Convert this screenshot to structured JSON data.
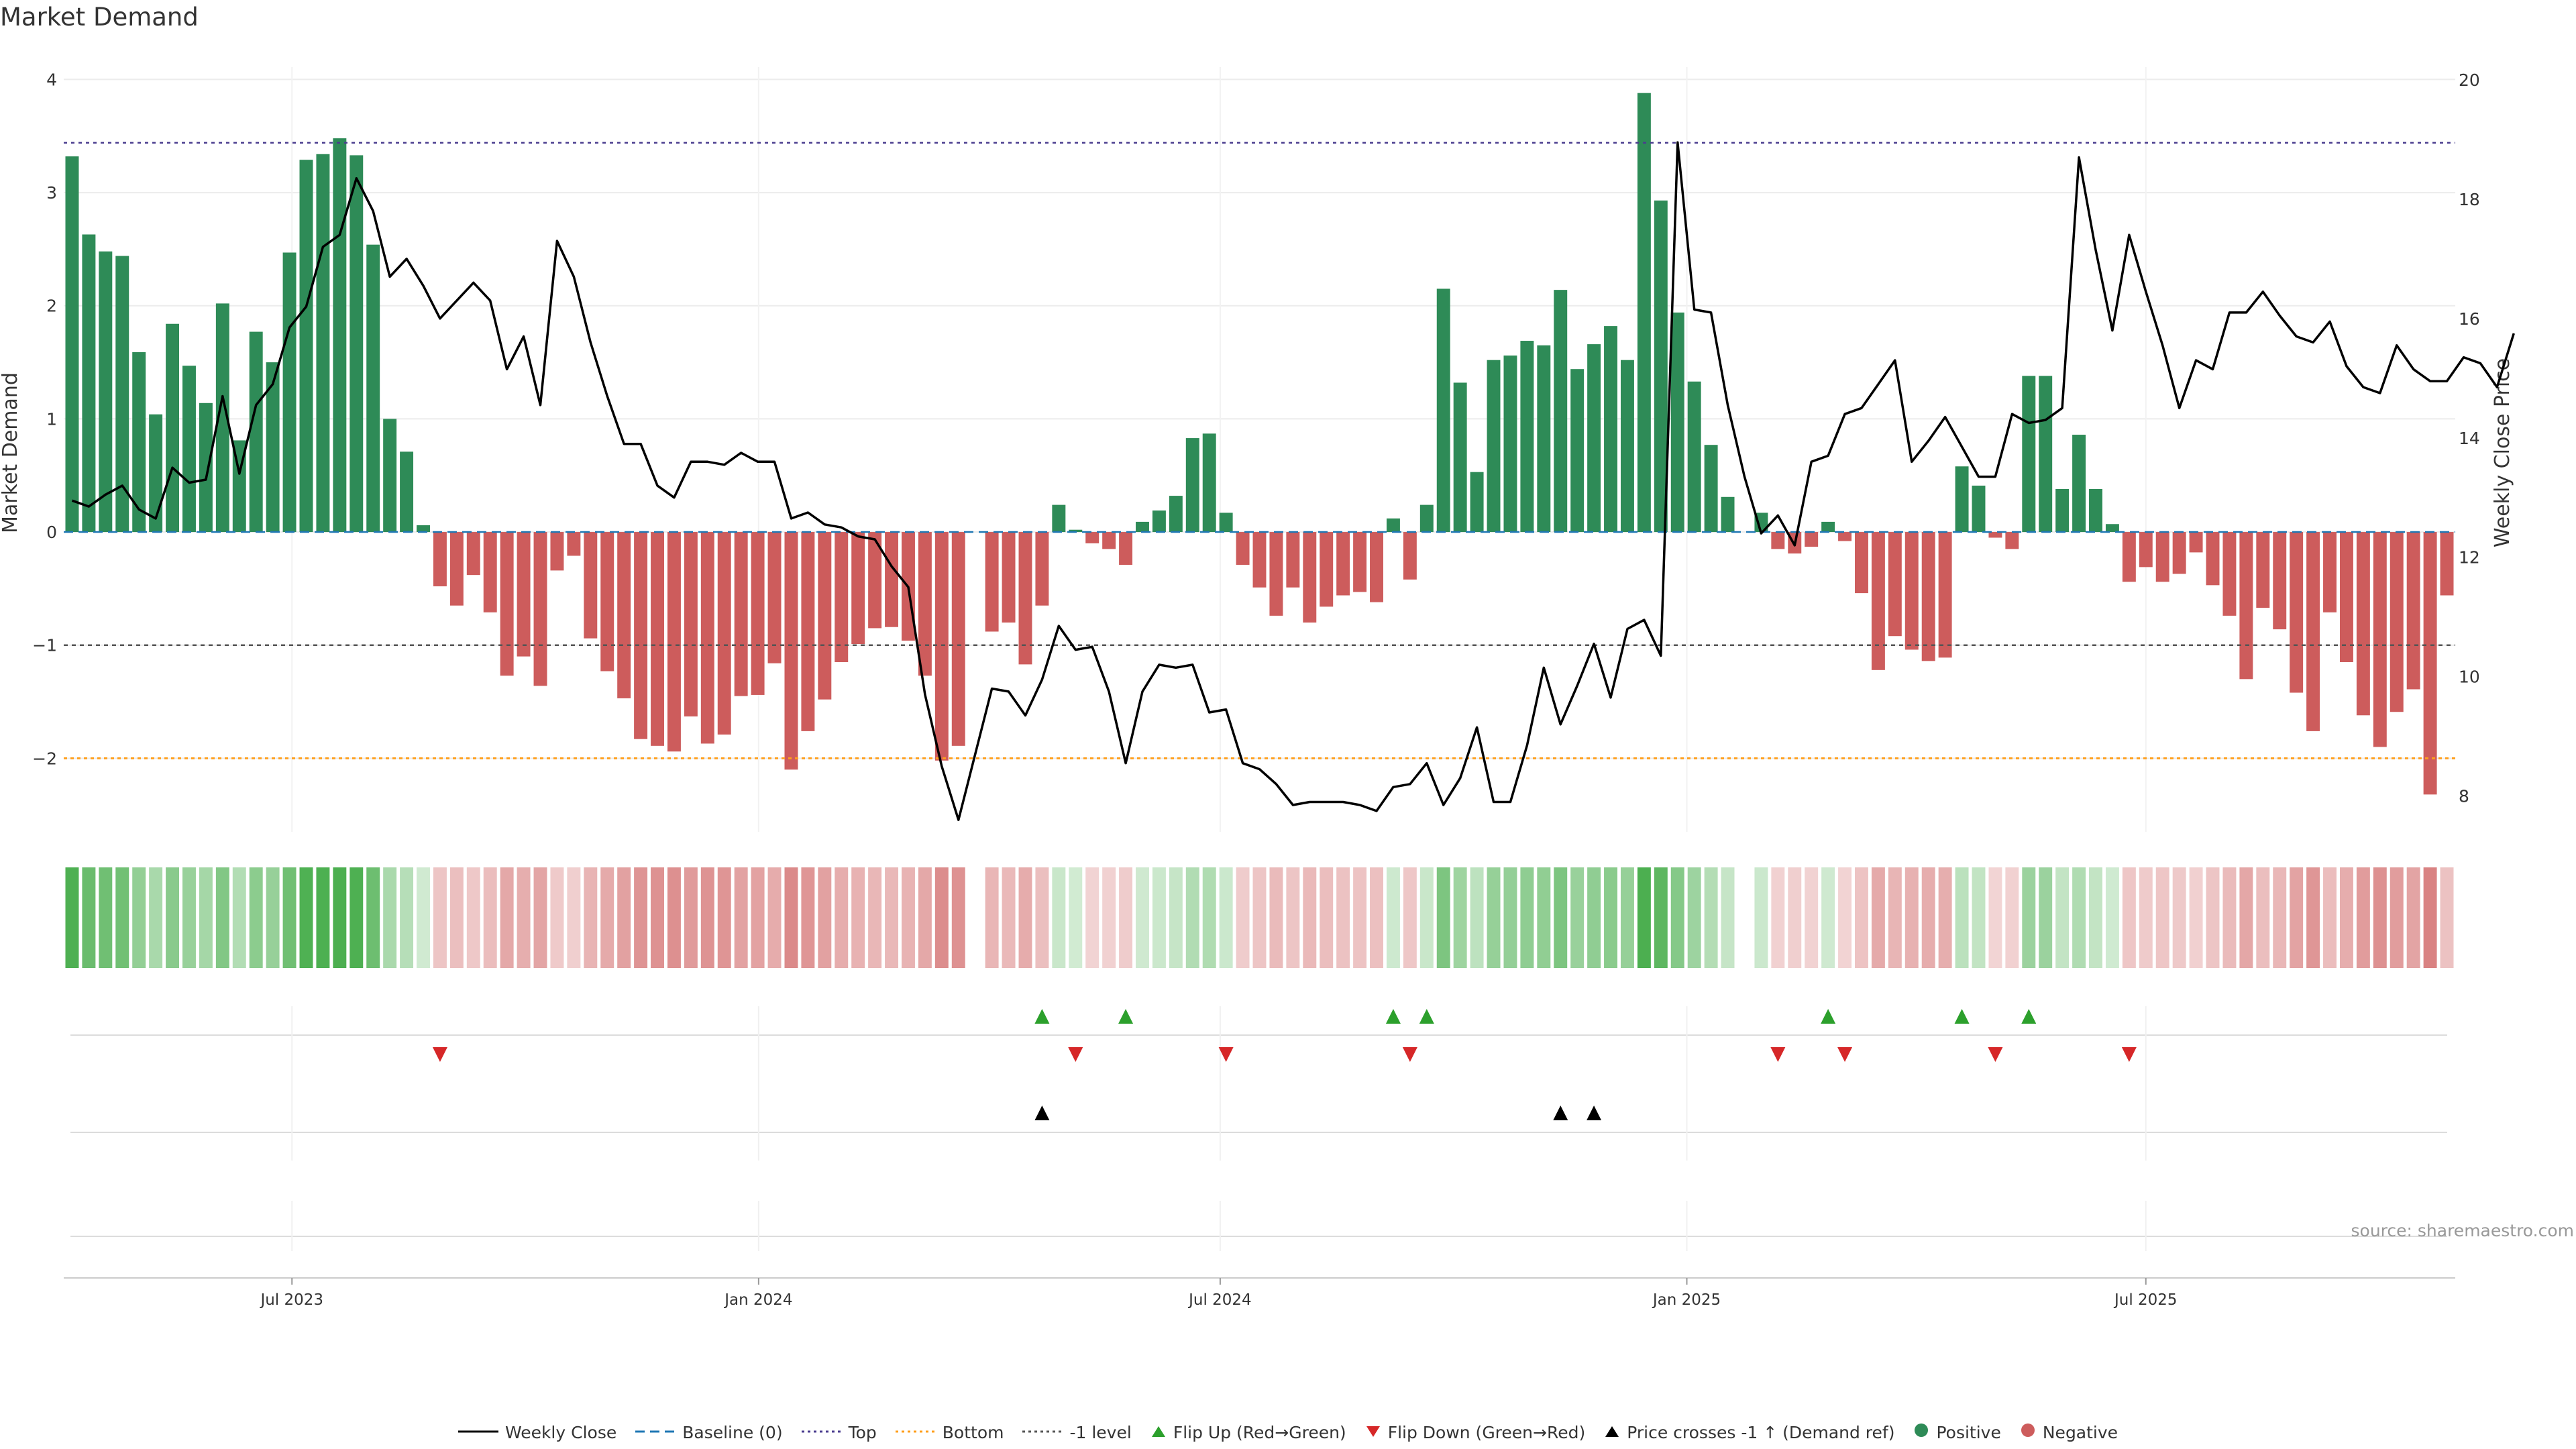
{
  "title": "Market Demand",
  "source": "source: sharemaestro.com",
  "colors": {
    "positive": "#2e8b57",
    "negative": "#cd5c5c",
    "price": "#000000",
    "baseline": "#1f77b4",
    "top": "#4b3d8f",
    "bottom": "#ff9f1c",
    "minus1": "#555555",
    "flip_up": "#2ca02c",
    "flip_down": "#d62728",
    "cross": "#000000"
  },
  "chart_data": {
    "type": "bar",
    "ylabel_left": "Market Demand",
    "ylabel_right": "Weekly Close Price",
    "ylim_left": [
      -2.65,
      4.05
    ],
    "yticks_left": [
      4,
      3,
      2,
      1,
      0,
      -1,
      -2
    ],
    "ylim_right": [
      7.4,
      20.1
    ],
    "yticks_right": [
      20,
      18,
      16,
      14,
      12,
      10,
      8
    ],
    "x_start": "2023-04-02",
    "x_end": "2025-10-31",
    "x_ticks": [
      "Jul 2023",
      "Jan 2024",
      "Jul 2024",
      "Jan 2025",
      "Jul 2025"
    ],
    "x_tick_dates": [
      "2023-07-01",
      "2024-01-01",
      "2024-07-01",
      "2025-01-01",
      "2025-07-01"
    ],
    "reference_lines": {
      "baseline": 0,
      "top": 3.44,
      "bottom": -2,
      "minus1": -1
    },
    "legend_position": "bottom",
    "grid": true,
    "series": [
      {
        "name": "Market Demand",
        "kind": "bar",
        "values": [
          3.32,
          2.63,
          2.48,
          2.44,
          1.59,
          1.04,
          1.84,
          1.47,
          1.14,
          2.02,
          0.81,
          1.77,
          1.5,
          2.47,
          3.29,
          3.34,
          3.48,
          3.33,
          2.54,
          1.0,
          0.71,
          0.06,
          -0.48,
          -0.65,
          -0.38,
          -0.71,
          -1.27,
          -1.1,
          -1.36,
          -0.34,
          -0.21,
          -0.94,
          -1.23,
          -1.47,
          -1.83,
          -1.89,
          -1.94,
          -1.63,
          -1.87,
          -1.79,
          -1.45,
          -1.44,
          -1.16,
          -2.1,
          -1.76,
          -1.48,
          -1.15,
          -0.99,
          -0.85,
          -0.84,
          -0.96,
          -1.27,
          -2.02,
          -1.89,
          0.0,
          -0.88,
          -0.8,
          -1.17,
          -0.65,
          0.24,
          0.02,
          -0.1,
          -0.15,
          -0.29,
          0.09,
          0.19,
          0.32,
          0.83,
          0.87,
          0.17,
          -0.29,
          -0.49,
          -0.74,
          -0.49,
          -0.8,
          -0.66,
          -0.56,
          -0.53,
          -0.62,
          0.12,
          -0.42,
          0.24,
          2.15,
          1.32,
          0.53,
          1.52,
          1.56,
          1.69,
          1.65,
          2.14,
          1.44,
          1.66,
          1.82,
          1.52,
          3.88,
          2.93,
          1.94,
          1.33,
          0.77,
          0.31,
          0.0,
          0.17,
          -0.15,
          -0.19,
          -0.13,
          0.09,
          -0.08,
          -0.54,
          -1.22,
          -0.92,
          -1.04,
          -1.14,
          -1.11,
          0.58,
          0.41,
          -0.05,
          -0.15,
          1.38,
          1.38,
          0.38,
          0.86,
          0.38,
          0.07,
          -0.44,
          -0.31,
          -0.44,
          -0.37,
          -0.18,
          -0.47,
          -0.74,
          -1.3,
          -0.67,
          -0.86,
          -1.42,
          -1.76,
          -0.71,
          -1.15,
          -1.62,
          -1.9,
          -1.59,
          -1.39,
          -2.32,
          -0.56
        ]
      },
      {
        "name": "Weekly Close",
        "kind": "line",
        "values": [
          12.95,
          12.85,
          13.05,
          13.2,
          12.8,
          12.65,
          13.5,
          13.25,
          13.3,
          14.7,
          13.4,
          14.55,
          14.9,
          15.85,
          16.2,
          17.2,
          17.4,
          18.35,
          17.8,
          16.7,
          17.0,
          16.55,
          16.0,
          16.3,
          16.6,
          16.3,
          15.15,
          15.7,
          14.55,
          17.3,
          16.7,
          15.6,
          14.7,
          13.9,
          13.9,
          13.2,
          13.0,
          13.6,
          13.6,
          13.55,
          13.75,
          13.6,
          13.6,
          12.65,
          12.75,
          12.55,
          12.5,
          12.35,
          12.3,
          11.85,
          11.5,
          9.7,
          8.5,
          7.6,
          8.7,
          9.8,
          9.75,
          9.35,
          9.95,
          10.85,
          10.45,
          10.5,
          9.75,
          8.55,
          9.75,
          10.2,
          10.15,
          10.2,
          9.4,
          9.45,
          8.55,
          8.45,
          8.2,
          7.85,
          7.9,
          7.9,
          7.9,
          7.85,
          7.75,
          8.15,
          8.2,
          8.55,
          7.85,
          8.3,
          9.15,
          7.9,
          7.9,
          8.85,
          10.15,
          9.2,
          9.85,
          10.55,
          9.65,
          10.8,
          10.95,
          10.35,
          18.95,
          16.15,
          16.1,
          14.55,
          13.35,
          12.4,
          12.7,
          12.2,
          13.6,
          13.7,
          14.4,
          14.5,
          14.9,
          15.3,
          13.6,
          13.95,
          14.35,
          13.85,
          13.35,
          13.35,
          14.4,
          14.25,
          14.3,
          14.5,
          18.7,
          17.15,
          15.8,
          17.4,
          16.45,
          15.55,
          14.5,
          15.3,
          15.15,
          16.1,
          16.1,
          16.45,
          16.05,
          15.7,
          15.6,
          15.95,
          15.2,
          14.85,
          14.75,
          15.55,
          15.15,
          14.95,
          14.95,
          15.35,
          15.25,
          14.85,
          15.75
        ]
      }
    ],
    "strip_intensity_ticks": [
      -1,
      0,
      1
    ],
    "flip_up_weeks": [
      58,
      63,
      79,
      81,
      105,
      113,
      117
    ],
    "flip_down_weeks": [
      22,
      60,
      69,
      80,
      102,
      106,
      115,
      123
    ],
    "cross_weeks": [
      58,
      89,
      91
    ]
  },
  "legend": [
    {
      "label": "Weekly Close",
      "symbol": "line-solid",
      "color_key": "price"
    },
    {
      "label": "Baseline (0)",
      "symbol": "line-dashed",
      "color_key": "baseline"
    },
    {
      "label": "Top",
      "symbol": "line-dotted",
      "color_key": "top"
    },
    {
      "label": "Bottom",
      "symbol": "line-dotted",
      "color_key": "bottom"
    },
    {
      "label": "-1 level",
      "symbol": "line-dotted",
      "color_key": "minus1"
    },
    {
      "label": "Flip Up (Red→Green)",
      "symbol": "tri-up",
      "color_key": "flip_up"
    },
    {
      "label": "Flip Down (Green→Red)",
      "symbol": "tri-down",
      "color_key": "flip_down"
    },
    {
      "label": "Price crosses -1 ↑ (Demand ref)",
      "symbol": "tri-up",
      "color_key": "cross"
    },
    {
      "label": "Positive",
      "symbol": "dot",
      "color_key": "positive"
    },
    {
      "label": "Negative",
      "symbol": "dot",
      "color_key": "negative"
    }
  ]
}
